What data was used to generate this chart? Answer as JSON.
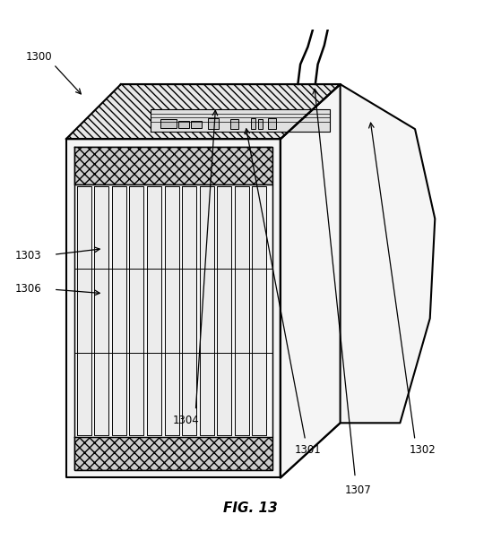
{
  "figure_label": "FIG. 13",
  "background_color": "#ffffff",
  "fig_width": 5.59,
  "fig_height": 6.22
}
